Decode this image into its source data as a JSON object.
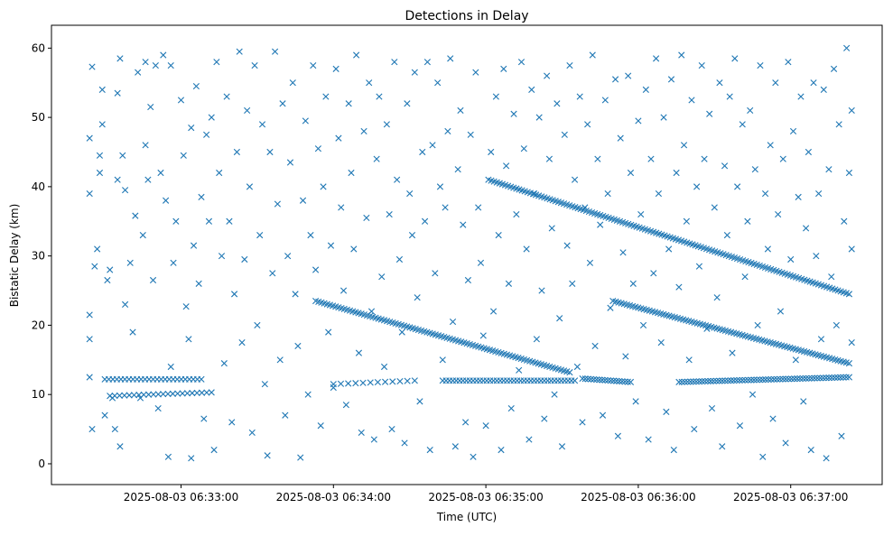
{
  "chart_data": {
    "type": "scatter",
    "title": "Detections in Delay",
    "xlabel": "Time (UTC)",
    "ylabel": "Bistatic Delay (km)",
    "x_units": "seconds after 2025-08-03 06:32:00",
    "xlim": [
      9,
      336
    ],
    "ylim": [
      -3,
      63.3
    ],
    "x_ticks": [
      {
        "value": 60,
        "label": "2025-08-03 06:33:00"
      },
      {
        "value": 120,
        "label": "2025-08-03 06:34:00"
      },
      {
        "value": 180,
        "label": "2025-08-03 06:35:00"
      },
      {
        "value": 240,
        "label": "2025-08-03 06:36:00"
      },
      {
        "value": 300,
        "label": "2025-08-03 06:37:00"
      }
    ],
    "y_ticks": [
      {
        "value": 0,
        "label": "0"
      },
      {
        "value": 10,
        "label": "10"
      },
      {
        "value": 20,
        "label": "20"
      },
      {
        "value": 30,
        "label": "30"
      },
      {
        "value": 40,
        "label": "40"
      },
      {
        "value": 50,
        "label": "50"
      },
      {
        "value": 60,
        "label": "60"
      }
    ],
    "marker": "x",
    "color": "#1f77b4",
    "tracks": [
      {
        "t0": 113,
        "y0": 23.5,
        "t1": 213,
        "y1": 13.2,
        "n": 90
      },
      {
        "t0": 230,
        "y0": 23.5,
        "t1": 323,
        "y1": 14.5,
        "n": 85
      },
      {
        "t0": 181,
        "y0": 41.0,
        "t1": 323,
        "y1": 24.5,
        "n": 130
      },
      {
        "t0": 30,
        "y0": 12.2,
        "t1": 68,
        "y1": 12.2,
        "n": 25
      },
      {
        "t0": 32,
        "y0": 9.8,
        "t1": 72,
        "y1": 10.3,
        "n": 22
      },
      {
        "t0": 163,
        "y0": 12.0,
        "t1": 215,
        "y1": 12.0,
        "n": 40
      },
      {
        "t0": 218,
        "y0": 12.3,
        "t1": 237,
        "y1": 11.8,
        "n": 18
      },
      {
        "t0": 256,
        "y0": 11.8,
        "t1": 323,
        "y1": 12.5,
        "n": 60
      },
      {
        "t0": 120,
        "y0": 11.5,
        "t1": 152,
        "y1": 12.0,
        "n": 12
      }
    ],
    "points": [
      [
        24,
        47
      ],
      [
        24,
        39
      ],
      [
        24,
        21.5
      ],
      [
        24,
        18
      ],
      [
        24,
        12.5
      ],
      [
        25,
        57.3
      ],
      [
        25,
        5
      ],
      [
        26,
        28.5
      ],
      [
        27,
        31
      ],
      [
        28,
        44.5
      ],
      [
        28,
        42
      ],
      [
        29,
        54
      ],
      [
        29,
        49
      ],
      [
        30,
        7
      ],
      [
        31,
        26.5
      ],
      [
        32,
        28
      ],
      [
        33,
        9.5
      ],
      [
        34,
        5
      ],
      [
        35,
        41
      ],
      [
        35,
        53.5
      ],
      [
        36,
        58.5
      ],
      [
        36,
        2.5
      ],
      [
        37,
        44.5
      ],
      [
        38,
        23
      ],
      [
        38,
        39.5
      ],
      [
        40,
        29
      ],
      [
        41,
        19
      ],
      [
        42,
        35.8
      ],
      [
        43,
        56.5
      ],
      [
        44,
        9.5
      ],
      [
        45,
        33
      ],
      [
        46,
        46
      ],
      [
        46,
        58
      ],
      [
        47,
        41
      ],
      [
        48,
        51.5
      ],
      [
        49,
        26.5
      ],
      [
        50,
        57.5
      ],
      [
        51,
        8
      ],
      [
        52,
        42
      ],
      [
        53,
        59
      ],
      [
        54,
        38
      ],
      [
        55,
        1
      ],
      [
        56,
        57.5
      ],
      [
        56,
        14
      ],
      [
        57,
        29
      ],
      [
        58,
        35
      ],
      [
        60,
        52.5
      ],
      [
        61,
        44.5
      ],
      [
        62,
        22.7
      ],
      [
        63,
        18
      ],
      [
        64,
        48.5
      ],
      [
        64,
        0.8
      ],
      [
        65,
        31.5
      ],
      [
        66,
        54.5
      ],
      [
        67,
        26
      ],
      [
        68,
        38.5
      ],
      [
        69,
        6.5
      ],
      [
        70,
        47.5
      ],
      [
        71,
        35
      ],
      [
        72,
        50
      ],
      [
        73,
        2
      ],
      [
        74,
        58
      ],
      [
        75,
        42
      ],
      [
        76,
        30
      ],
      [
        77,
        14.5
      ],
      [
        78,
        53
      ],
      [
        79,
        35
      ],
      [
        80,
        6
      ],
      [
        81,
        24.5
      ],
      [
        82,
        45
      ],
      [
        83,
        59.5
      ],
      [
        84,
        17.5
      ],
      [
        85,
        29.5
      ],
      [
        86,
        51
      ],
      [
        87,
        40
      ],
      [
        88,
        4.5
      ],
      [
        89,
        57.5
      ],
      [
        90,
        20
      ],
      [
        91,
        33
      ],
      [
        92,
        49
      ],
      [
        93,
        11.5
      ],
      [
        94,
        1.2
      ],
      [
        95,
        45
      ],
      [
        96,
        27.5
      ],
      [
        97,
        59.5
      ],
      [
        98,
        37.5
      ],
      [
        99,
        15
      ],
      [
        100,
        52
      ],
      [
        101,
        7
      ],
      [
        102,
        30
      ],
      [
        103,
        43.5
      ],
      [
        104,
        55
      ],
      [
        105,
        24.5
      ],
      [
        106,
        17
      ],
      [
        107,
        0.9
      ],
      [
        108,
        38
      ],
      [
        109,
        49.5
      ],
      [
        110,
        10
      ],
      [
        111,
        33
      ],
      [
        112,
        57.5
      ],
      [
        113,
        28
      ],
      [
        114,
        45.5
      ],
      [
        115,
        5.5
      ],
      [
        116,
        40
      ],
      [
        117,
        53
      ],
      [
        118,
        19
      ],
      [
        119,
        31.5
      ],
      [
        120,
        11
      ],
      [
        121,
        57
      ],
      [
        122,
        47
      ],
      [
        123,
        37
      ],
      [
        124,
        25
      ],
      [
        125,
        8.5
      ],
      [
        126,
        52
      ],
      [
        127,
        42
      ],
      [
        128,
        31
      ],
      [
        129,
        59
      ],
      [
        130,
        16
      ],
      [
        131,
        4.5
      ],
      [
        132,
        48
      ],
      [
        133,
        35.5
      ],
      [
        134,
        55
      ],
      [
        135,
        22
      ],
      [
        136,
        3.5
      ],
      [
        137,
        44
      ],
      [
        138,
        53
      ],
      [
        139,
        27
      ],
      [
        140,
        14
      ],
      [
        141,
        49
      ],
      [
        142,
        36
      ],
      [
        143,
        5
      ],
      [
        144,
        58
      ],
      [
        145,
        41
      ],
      [
        146,
        29.5
      ],
      [
        147,
        19
      ],
      [
        148,
        3
      ],
      [
        149,
        52
      ],
      [
        150,
        39
      ],
      [
        151,
        33
      ],
      [
        152,
        56.5
      ],
      [
        153,
        24
      ],
      [
        154,
        9
      ],
      [
        155,
        45
      ],
      [
        156,
        35
      ],
      [
        157,
        58
      ],
      [
        158,
        2
      ],
      [
        159,
        46
      ],
      [
        160,
        27.5
      ],
      [
        161,
        55
      ],
      [
        162,
        40
      ],
      [
        163,
        15
      ],
      [
        164,
        37
      ],
      [
        165,
        48
      ],
      [
        166,
        58.5
      ],
      [
        167,
        20.5
      ],
      [
        168,
        2.5
      ],
      [
        169,
        42.5
      ],
      [
        170,
        51
      ],
      [
        171,
        34.5
      ],
      [
        172,
        6
      ],
      [
        173,
        26.5
      ],
      [
        174,
        47.5
      ],
      [
        175,
        1
      ],
      [
        176,
        56.5
      ],
      [
        177,
        37
      ],
      [
        178,
        29
      ],
      [
        179,
        18.5
      ],
      [
        180,
        5.5
      ],
      [
        182,
        45
      ],
      [
        183,
        22
      ],
      [
        184,
        53
      ],
      [
        185,
        33
      ],
      [
        186,
        2
      ],
      [
        187,
        57
      ],
      [
        188,
        43
      ],
      [
        189,
        26
      ],
      [
        190,
        8
      ],
      [
        191,
        50.5
      ],
      [
        192,
        36
      ],
      [
        193,
        13.5
      ],
      [
        194,
        58
      ],
      [
        195,
        45.5
      ],
      [
        196,
        31
      ],
      [
        197,
        3.5
      ],
      [
        198,
        54
      ],
      [
        199,
        39
      ],
      [
        200,
        18
      ],
      [
        201,
        50
      ],
      [
        202,
        25
      ],
      [
        203,
        6.5
      ],
      [
        204,
        56
      ],
      [
        205,
        44
      ],
      [
        206,
        34
      ],
      [
        207,
        10
      ],
      [
        208,
        52
      ],
      [
        209,
        21
      ],
      [
        210,
        2.5
      ],
      [
        211,
        47.5
      ],
      [
        212,
        31.5
      ],
      [
        213,
        57.5
      ],
      [
        214,
        26
      ],
      [
        215,
        41
      ],
      [
        216,
        14
      ],
      [
        217,
        53
      ],
      [
        218,
        6
      ],
      [
        219,
        37
      ],
      [
        220,
        49
      ],
      [
        221,
        29
      ],
      [
        222,
        59
      ],
      [
        223,
        17
      ],
      [
        224,
        44
      ],
      [
        225,
        34.5
      ],
      [
        226,
        7
      ],
      [
        227,
        52.5
      ],
      [
        228,
        39
      ],
      [
        229,
        22.5
      ],
      [
        231,
        55.5
      ],
      [
        232,
        4
      ],
      [
        233,
        47
      ],
      [
        234,
        30.5
      ],
      [
        235,
        15.5
      ],
      [
        236,
        56
      ],
      [
        237,
        42
      ],
      [
        238,
        26
      ],
      [
        239,
        9
      ],
      [
        240,
        49.5
      ],
      [
        241,
        36
      ],
      [
        242,
        20
      ],
      [
        243,
        54
      ],
      [
        244,
        3.5
      ],
      [
        245,
        44
      ],
      [
        246,
        27.5
      ],
      [
        247,
        58.5
      ],
      [
        248,
        39
      ],
      [
        249,
        17.5
      ],
      [
        250,
        50
      ],
      [
        251,
        7.5
      ],
      [
        252,
        31
      ],
      [
        253,
        55.5
      ],
      [
        254,
        2
      ],
      [
        255,
        42
      ],
      [
        256,
        25.5
      ],
      [
        257,
        59
      ],
      [
        258,
        46
      ],
      [
        259,
        35
      ],
      [
        260,
        15
      ],
      [
        261,
        52.5
      ],
      [
        262,
        5
      ],
      [
        263,
        40
      ],
      [
        264,
        28.5
      ],
      [
        265,
        57.5
      ],
      [
        266,
        44
      ],
      [
        267,
        19.5
      ],
      [
        268,
        50.5
      ],
      [
        269,
        8
      ],
      [
        270,
        37
      ],
      [
        271,
        24
      ],
      [
        272,
        55
      ],
      [
        273,
        2.5
      ],
      [
        274,
        43
      ],
      [
        275,
        33
      ],
      [
        276,
        53
      ],
      [
        277,
        16
      ],
      [
        278,
        58.5
      ],
      [
        279,
        40
      ],
      [
        280,
        5.5
      ],
      [
        281,
        49
      ],
      [
        282,
        27
      ],
      [
        283,
        35
      ],
      [
        284,
        51
      ],
      [
        285,
        10
      ],
      [
        286,
        42.5
      ],
      [
        287,
        20
      ],
      [
        288,
        57.5
      ],
      [
        289,
        1
      ],
      [
        290,
        39
      ],
      [
        291,
        31
      ],
      [
        292,
        46
      ],
      [
        293,
        6.5
      ],
      [
        294,
        55
      ],
      [
        295,
        36
      ],
      [
        296,
        22
      ],
      [
        297,
        44
      ],
      [
        298,
        3
      ],
      [
        299,
        58
      ],
      [
        300,
        29.5
      ],
      [
        301,
        48
      ],
      [
        302,
        15
      ],
      [
        303,
        38.5
      ],
      [
        304,
        53
      ],
      [
        305,
        9
      ],
      [
        306,
        34
      ],
      [
        307,
        45
      ],
      [
        308,
        2
      ],
      [
        309,
        55
      ],
      [
        310,
        30
      ],
      [
        311,
        39
      ],
      [
        312,
        18
      ],
      [
        313,
        54
      ],
      [
        314,
        0.8
      ],
      [
        315,
        42.5
      ],
      [
        316,
        27
      ],
      [
        317,
        57
      ],
      [
        318,
        20
      ],
      [
        319,
        49
      ],
      [
        320,
        4
      ],
      [
        321,
        35
      ],
      [
        322,
        60
      ],
      [
        323,
        42
      ],
      [
        324,
        51
      ],
      [
        324,
        31
      ],
      [
        324,
        17.5
      ]
    ]
  }
}
